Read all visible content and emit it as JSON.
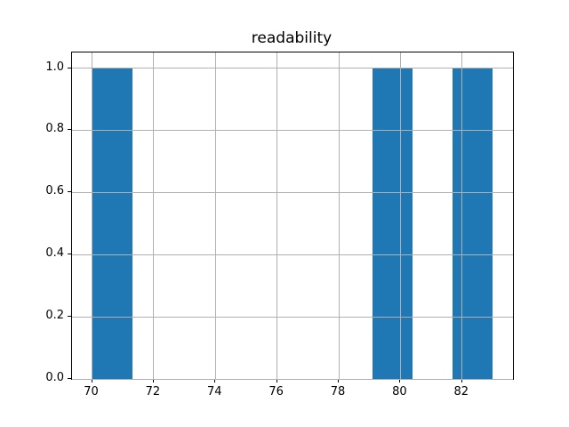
{
  "chart_data": {
    "type": "bar",
    "subtype": "histogram",
    "title": "readability",
    "xlabel": "",
    "ylabel": "",
    "xlim": [
      69.35,
      83.65
    ],
    "ylim": [
      0,
      1.05
    ],
    "xticks": [
      70,
      72,
      74,
      76,
      78,
      80,
      82
    ],
    "xtick_labels": [
      "70",
      "72",
      "74",
      "76",
      "78",
      "80",
      "82"
    ],
    "yticks": [
      0.0,
      0.2,
      0.4,
      0.6,
      0.8,
      1.0
    ],
    "ytick_labels": [
      "0.0",
      "0.2",
      "0.4",
      "0.6",
      "0.8",
      "1.0"
    ],
    "grid": true,
    "grid_on_top": true,
    "legend": null,
    "bins": [
      {
        "x0": 70.0,
        "x1": 71.3,
        "count": 1
      },
      {
        "x0": 79.1,
        "x1": 80.4,
        "count": 1
      },
      {
        "x0": 81.7,
        "x1": 83.0,
        "count": 1
      }
    ],
    "colors": {
      "bar": "#1f77b4",
      "grid": "#b0b0b0",
      "spine": "#000000",
      "text": "#000000",
      "background": "#ffffff"
    }
  }
}
